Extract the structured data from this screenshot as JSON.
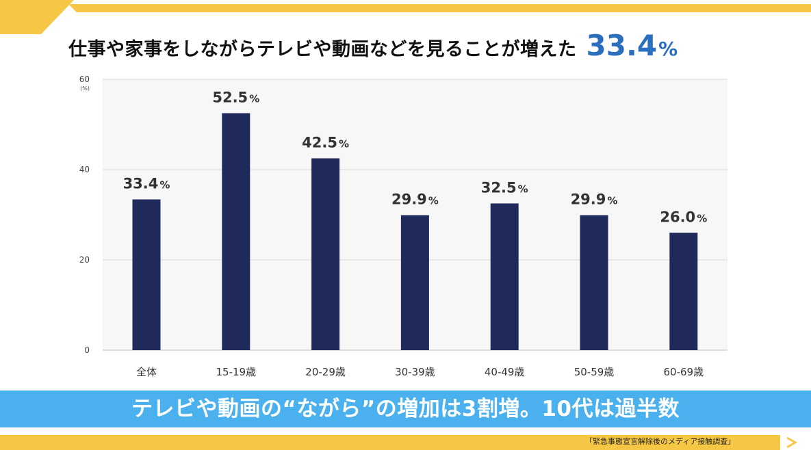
{
  "headline": {
    "text": "仕事や家事をしながらテレビや動画などを見ることが増えた",
    "value": "33.4",
    "unit": "%"
  },
  "banner": {
    "text": "テレビや動画の“ながら”の増加は3割増。10代は過半数"
  },
  "source": "「緊急事態宣言解除後のメディア接触調査」",
  "colors": {
    "bar": "#1f2a5a",
    "accent_yellow": "#f6c744",
    "banner_blue": "#4bb0ee",
    "headline_blue": "#2a6fbd",
    "grid": "#d9d9d9"
  },
  "chart_data": {
    "type": "bar",
    "categories": [
      "全体",
      "15-19歳",
      "20-29歳",
      "30-39歳",
      "40-49歳",
      "50-59歳",
      "60-69歳"
    ],
    "values": [
      33.4,
      52.5,
      42.5,
      29.9,
      32.5,
      29.9,
      26.0
    ],
    "value_labels": [
      "33.4",
      "52.5",
      "42.5",
      "29.9",
      "32.5",
      "29.9",
      "26.0"
    ],
    "value_unit": "%",
    "ylim": [
      0,
      60
    ],
    "yticks": [
      0,
      20,
      40,
      60
    ],
    "yunit": "(%)",
    "grid": true,
    "xlabel": "",
    "ylabel": ""
  }
}
